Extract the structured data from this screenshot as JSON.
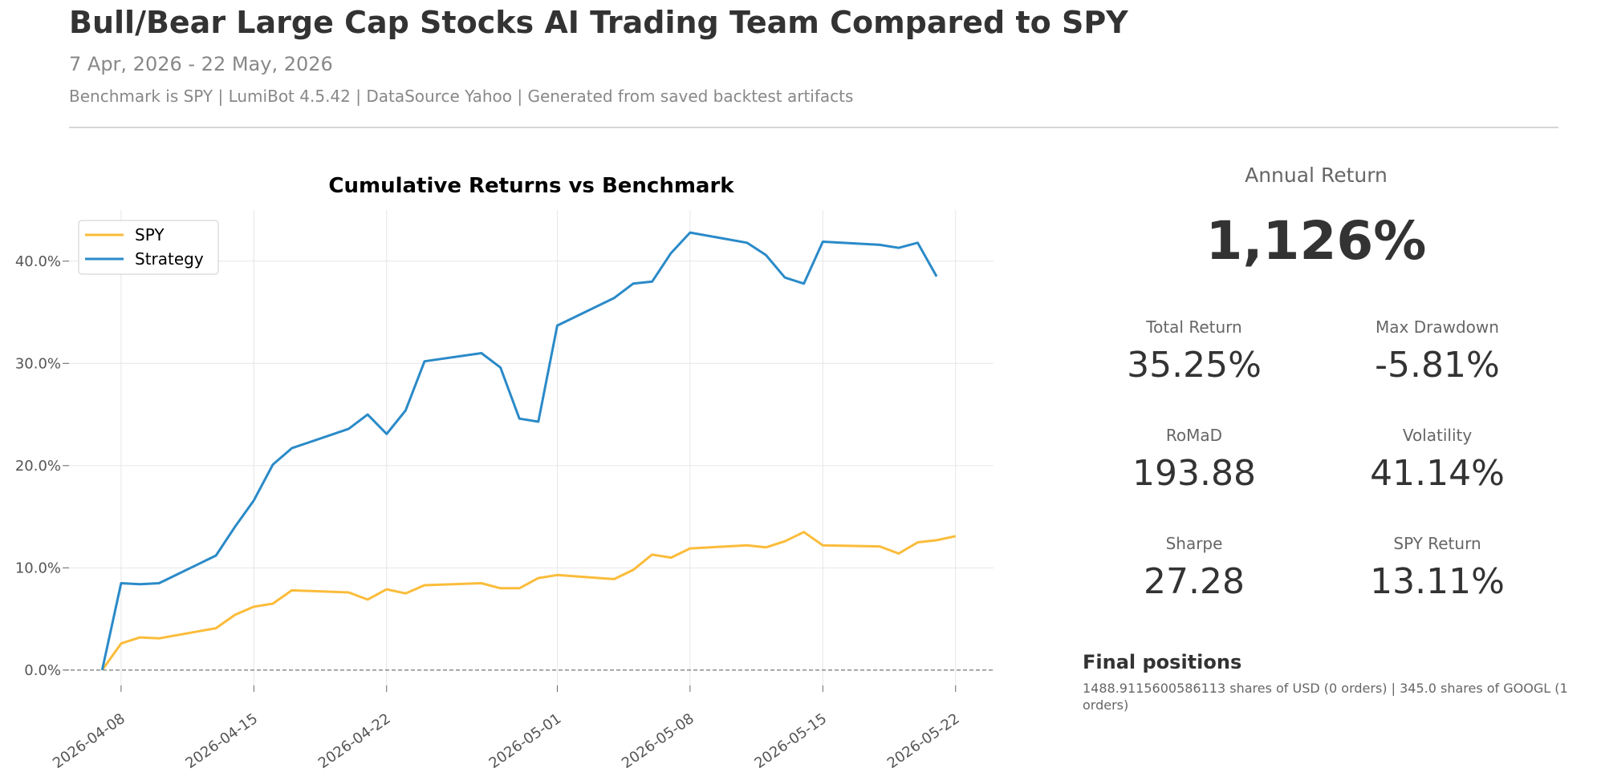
{
  "header": {
    "title": "Bull/Bear Large Cap Stocks AI Trading Team Compared to SPY",
    "subtitle": "7 Apr, 2026 - 22 May, 2026",
    "meta": "Benchmark is SPY | LumiBot 4.5.42 | DataSource Yahoo | Generated from saved backtest artifacts"
  },
  "metrics": {
    "annual_return": {
      "label": "Annual Return",
      "value": "1,126%"
    },
    "total_return": {
      "label": "Total Return",
      "value": "35.25%"
    },
    "max_drawdown": {
      "label": "Max Drawdown",
      "value": "-5.81%"
    },
    "romad": {
      "label": "RoMaD",
      "value": "193.88"
    },
    "volatility": {
      "label": "Volatility",
      "value": "41.14%"
    },
    "sharpe": {
      "label": "Sharpe",
      "value": "27.28"
    },
    "spy_return": {
      "label": "SPY Return",
      "value": "13.11%"
    }
  },
  "positions": {
    "title": "Final positions",
    "text": "1488.9115600586113 shares of USD (0 orders) | 345.0 shares of GOOGL (1 orders)"
  },
  "chart_data": {
    "type": "line",
    "title": "Cumulative Returns vs Benchmark",
    "xlabel": "",
    "ylabel": "",
    "x_ticks": [
      "2026-04-08",
      "2026-04-15",
      "2026-04-22",
      "2026-05-01",
      "2026-05-08",
      "2026-05-15",
      "2026-05-22"
    ],
    "y_ticks": [
      "0.0%",
      "10.0%",
      "20.0%",
      "30.0%",
      "40.0%"
    ],
    "ylim": [
      -1.5,
      45
    ],
    "xlim": [
      "2026-04-05",
      "2026-05-24"
    ],
    "grid": true,
    "legend_position": "top-left",
    "zero_line": "dashed",
    "colors": {
      "SPY": "#fbbc3a",
      "Strategy": "#2a8ac8"
    },
    "series": [
      {
        "name": "SPY",
        "x": [
          "2026-04-07",
          "2026-04-08",
          "2026-04-09",
          "2026-04-10",
          "2026-04-13",
          "2026-04-14",
          "2026-04-15",
          "2026-04-16",
          "2026-04-17",
          "2026-04-20",
          "2026-04-21",
          "2026-04-22",
          "2026-04-23",
          "2026-04-24",
          "2026-04-27",
          "2026-04-28",
          "2026-04-29",
          "2026-04-30",
          "2026-05-01",
          "2026-05-04",
          "2026-05-05",
          "2026-05-06",
          "2026-05-07",
          "2026-05-08",
          "2026-05-11",
          "2026-05-12",
          "2026-05-13",
          "2026-05-14",
          "2026-05-15",
          "2026-05-18",
          "2026-05-19",
          "2026-05-20",
          "2026-05-21",
          "2026-05-22"
        ],
        "values": [
          0.0,
          2.6,
          3.2,
          3.1,
          4.1,
          5.4,
          6.2,
          6.5,
          7.8,
          7.6,
          6.9,
          7.9,
          7.5,
          8.3,
          8.5,
          8.0,
          8.0,
          9.0,
          9.3,
          8.9,
          9.8,
          11.3,
          11.0,
          11.9,
          12.2,
          12.0,
          12.6,
          13.5,
          12.2,
          12.1,
          11.4,
          12.5,
          12.7,
          13.1
        ]
      },
      {
        "name": "Strategy",
        "x": [
          "2026-04-07",
          "2026-04-08",
          "2026-04-09",
          "2026-04-10",
          "2026-04-13",
          "2026-04-14",
          "2026-04-15",
          "2026-04-16",
          "2026-04-17",
          "2026-04-20",
          "2026-04-21",
          "2026-04-22",
          "2026-04-23",
          "2026-04-24",
          "2026-04-27",
          "2026-04-28",
          "2026-04-29",
          "2026-04-30",
          "2026-05-01",
          "2026-05-04",
          "2026-05-05",
          "2026-05-06",
          "2026-05-07",
          "2026-05-08",
          "2026-05-11",
          "2026-05-12",
          "2026-05-13",
          "2026-05-14",
          "2026-05-15",
          "2026-05-18",
          "2026-05-19",
          "2026-05-20",
          "2026-05-21"
        ],
        "values": [
          0.0,
          8.5,
          8.4,
          8.5,
          11.2,
          14.0,
          16.6,
          20.1,
          21.7,
          23.6,
          25.0,
          23.1,
          25.4,
          30.2,
          31.0,
          29.6,
          24.6,
          24.3,
          33.7,
          36.4,
          37.8,
          38.0,
          40.8,
          42.8,
          41.8,
          40.6,
          38.4,
          37.8,
          41.9,
          41.6,
          41.3,
          41.8,
          38.5
        ]
      }
    ]
  }
}
